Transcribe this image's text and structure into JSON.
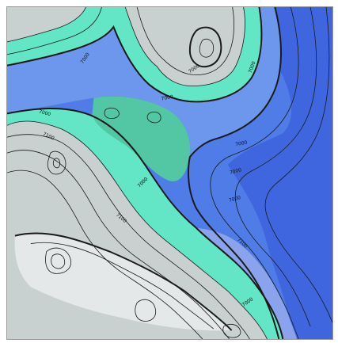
{
  "map": {
    "colors": {
      "highland": "#c9d0d0",
      "highland_light": "#e4e8e8",
      "mid_teal": "#63e6c5",
      "valley_teal": "#53c6a4",
      "blue": "#5b8fe8",
      "deep_blue": "#3f66de",
      "pale_blue": "#8aa3ec",
      "contour": "#1a1a1a"
    },
    "contour_labels": [
      "7000",
      "7000",
      "7000",
      "7000",
      "7000",
      "7000",
      "7000",
      "7000",
      "7000",
      "7100",
      "7100",
      "7100",
      "7000"
    ]
  }
}
